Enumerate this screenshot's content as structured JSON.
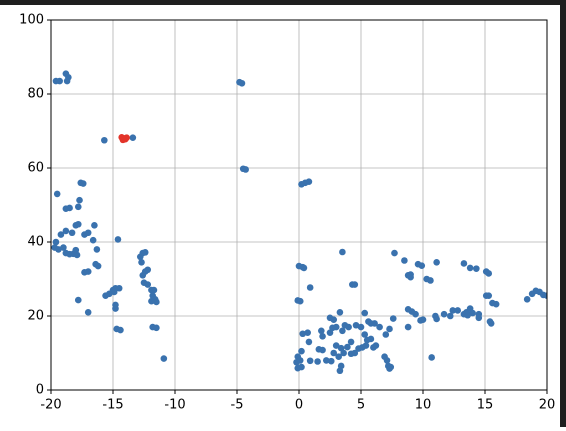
{
  "chart_data": {
    "type": "scatter",
    "xlim": [
      -20,
      20
    ],
    "ylim": [
      0,
      100
    ],
    "xticks": [
      -20,
      -15,
      -10,
      -5,
      0,
      5,
      10,
      15,
      20
    ],
    "yticks": [
      0,
      20,
      40,
      60,
      80,
      100
    ],
    "grid": true,
    "series": [
      {
        "color": "#3a72ae",
        "x": [
          -19.6,
          -19.3,
          -18.8,
          -18.6,
          -18.7,
          -4.8,
          -4.6,
          -4.5,
          -4.3,
          -15.7,
          -13.4,
          -17.6,
          -17.4,
          -19.5,
          -18.8,
          -18.5,
          -17.7,
          -17.8,
          -18,
          -17.8,
          -17,
          -16.5,
          -17.3,
          -18.3,
          -19.2,
          -18.8,
          -19.6,
          -19.7,
          -19.4,
          -19,
          -18.8,
          -18.5,
          -18.2,
          -18,
          -17.9,
          -16.6,
          -16.3,
          -14.6,
          -16.4,
          -16.2,
          -17.3,
          -17,
          -17.8,
          -17,
          -15.6,
          -15.3,
          -15,
          -14.8,
          -14.5,
          -14.9,
          -14.8,
          -14.8,
          -14.7,
          -14.4,
          -12.8,
          -12.6,
          -12.4,
          -12.7,
          -12.4,
          -12.2,
          -12.6,
          -12.5,
          -12.2,
          -11.9,
          -11.7,
          -11.8,
          -11.6,
          -11.5,
          -11.9,
          -11.8,
          -11.5,
          -10.9,
          0,
          0.3,
          0.4,
          -0.1,
          0.1,
          0.2,
          0.5,
          0.8,
          0.9,
          3.5,
          4.3,
          4.5,
          0.3,
          0.7,
          0.8,
          1.6,
          1.9,
          1.9,
          1.8,
          2.5,
          2.8,
          2.7,
          3,
          2.5,
          3.3,
          3.5,
          3.7,
          4,
          3,
          3.4,
          3.6,
          3.9,
          4.2,
          2.8,
          3.2,
          3.4,
          3.3,
          2.6,
          2.2,
          1.5,
          0.9,
          -0.1,
          0.1,
          -0.2,
          0.2,
          -0.1,
          0.2,
          4.6,
          5,
          5.3,
          5.6,
          5.8,
          6.1,
          6.5,
          5.3,
          5.5,
          5.8,
          6.2,
          5.4,
          5.1,
          4.8,
          4.5,
          4.2,
          6,
          6.9,
          7.1,
          7.2,
          7.3,
          7.4,
          7,
          7.3,
          7.6,
          7.7,
          8.5,
          8.8,
          9,
          9,
          9.6,
          9.9,
          10.3,
          10.6,
          11.1,
          8.8,
          9.1,
          9.4,
          8.8,
          9.8,
          10,
          10.7,
          11,
          11.1,
          11.7,
          12.2,
          12.4,
          12.8,
          13.3,
          13.5,
          13.8,
          14,
          13.6,
          14.5,
          14.5,
          13.3,
          13.8,
          14.3,
          15.1,
          15.3,
          15.1,
          15.3,
          15.6,
          15.9,
          15.4,
          15.5,
          18.4,
          18.8,
          19.1,
          19.4,
          19.7,
          20
        ],
        "values": [
          83.5,
          83.5,
          85.5,
          84.5,
          83.5,
          83.2,
          82.9,
          59.8,
          59.6,
          67.5,
          68.2,
          56,
          55.8,
          53,
          49,
          49.2,
          51.3,
          49.5,
          44.5,
          44.8,
          42.5,
          44.5,
          42,
          42.5,
          42,
          43,
          40,
          38.5,
          38,
          38.5,
          37,
          36.7,
          36.8,
          37.8,
          36.5,
          40.5,
          38,
          40.7,
          34,
          33.5,
          31.8,
          32,
          24.3,
          21,
          25.5,
          26,
          27,
          27.5,
          27.5,
          26.5,
          23,
          22,
          16.5,
          16.2,
          36,
          37,
          37.2,
          34.5,
          32,
          32.5,
          31,
          29,
          28.5,
          27,
          27,
          25.5,
          24.5,
          23.8,
          24,
          17,
          16.8,
          8.5,
          33.5,
          33.2,
          33,
          24.2,
          24,
          55.6,
          56,
          56.3,
          27.7,
          37.3,
          28.5,
          28.5,
          15.2,
          15.5,
          13,
          11,
          10.8,
          14.5,
          16,
          19.5,
          19,
          16.8,
          17,
          15.5,
          21,
          16,
          17.5,
          17,
          12,
          11.3,
          10,
          11.6,
          9.8,
          10,
          9,
          6.5,
          5.2,
          7.8,
          8,
          7.7,
          7.9,
          9,
          8,
          7.5,
          6.2,
          5.9,
          10.5,
          17.5,
          17,
          20.8,
          18.5,
          18,
          18,
          17,
          15,
          13.5,
          13.8,
          12,
          12,
          11.5,
          11.2,
          10,
          13,
          11.5,
          9,
          8,
          6.5,
          5.8,
          6.2,
          15,
          16.5,
          19.3,
          37,
          35,
          31,
          31.2,
          30.5,
          34,
          33.6,
          30,
          29.6,
          34.5,
          21.8,
          21.2,
          20.5,
          17,
          18.8,
          19,
          8.8,
          20,
          19.2,
          20.5,
          20,
          21.5,
          21.5,
          20.5,
          21,
          22,
          20.8,
          20.2,
          20.5,
          19.5,
          34.2,
          33,
          32.8,
          32,
          31.5,
          25.5,
          25.5,
          23.5,
          23.2,
          18.5,
          18,
          24.5,
          26,
          26.8,
          26.5,
          25.7,
          25.5
        ]
      },
      {
        "color": "#e3342a",
        "x": [
          -14.3,
          -14.1,
          -14,
          -13.9,
          -14.2
        ],
        "values": [
          68.3,
          68,
          67.8,
          68.2,
          67.6
        ]
      }
    ]
  }
}
